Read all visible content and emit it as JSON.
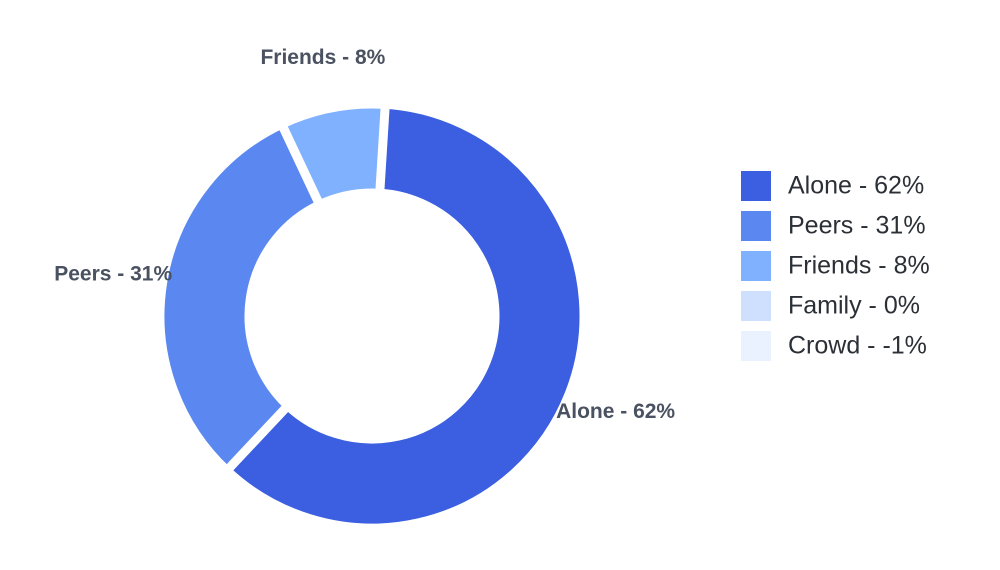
{
  "chart_data": {
    "type": "donut",
    "categories": [
      "Alone - 62%",
      "Peers - 31%",
      "Friends - 8%",
      "Family - 0%",
      "Crowd - -1%"
    ],
    "values": [
      62,
      31,
      8,
      0,
      -1
    ],
    "colors": [
      "#3b5fe0",
      "#5b88f0",
      "#7fb1ff",
      "#cfe0ff",
      "#eaf2ff"
    ],
    "legend": "right"
  }
}
